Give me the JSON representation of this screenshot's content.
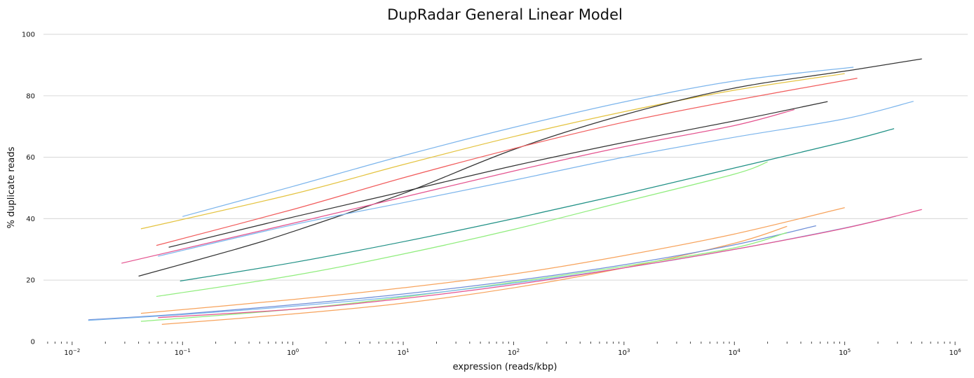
{
  "chart_data": {
    "type": "line",
    "title": "DupRadar General Linear Model",
    "xlabel": "expression (reads/kbp)",
    "ylabel": "% duplicate reads",
    "x_scale": "log10",
    "xlim": [
      0.0055,
      1300000
    ],
    "ylim": [
      0,
      100
    ],
    "x_ticks": [
      0.01,
      0.1,
      1,
      10,
      100,
      1000,
      10000,
      100000,
      1000000
    ],
    "x_tick_labels": [
      {
        "base": "10",
        "exp": "−2"
      },
      {
        "base": "10",
        "exp": "−1"
      },
      {
        "base": "10",
        "exp": "0"
      },
      {
        "base": "10",
        "exp": "1"
      },
      {
        "base": "10",
        "exp": "2"
      },
      {
        "base": "10",
        "exp": "3"
      },
      {
        "base": "10",
        "exp": "4"
      },
      {
        "base": "10",
        "exp": "5"
      },
      {
        "base": "10",
        "exp": "6"
      }
    ],
    "y_ticks": [
      0,
      20,
      40,
      60,
      80,
      100
    ],
    "y_tick_labels": [
      "0",
      "20",
      "40",
      "60",
      "80",
      "100"
    ],
    "grid": "horizontal",
    "legend": "none",
    "series": [
      {
        "color": "#7cb5ec",
        "x": [
          0.1,
          1,
          10,
          100,
          1000,
          10000,
          120000
        ],
        "y": [
          40.7,
          50.5,
          60.5,
          69.7,
          78.0,
          84.8,
          89.3
        ]
      },
      {
        "color": "#e4c340",
        "x": [
          0.042,
          1,
          10,
          100,
          1000,
          10000,
          100000
        ],
        "y": [
          36.7,
          48.0,
          57.6,
          66.7,
          74.8,
          81.8,
          87.2
        ]
      },
      {
        "color": "#333333",
        "x": [
          0.04,
          0.3,
          1,
          10,
          100,
          1000,
          10000,
          100000,
          500000
        ],
        "y": [
          21.3,
          30.0,
          35.8,
          48.2,
          62.5,
          73.8,
          82.5,
          88.0,
          92.0
        ]
      },
      {
        "color": "#f15c5c",
        "x": [
          0.058,
          1,
          10,
          100,
          1000,
          10000,
          130000
        ],
        "y": [
          31.3,
          43.0,
          53.3,
          62.8,
          71.4,
          78.5,
          85.7
        ]
      },
      {
        "color": "#333333",
        "x": [
          0.075,
          1,
          10,
          100,
          1000,
          10000,
          70000
        ],
        "y": [
          30.7,
          40.5,
          48.8,
          57.2,
          64.8,
          71.8,
          78.1
        ]
      },
      {
        "color": "#e4538f",
        "x": [
          0.028,
          1,
          10,
          100,
          1000,
          10000,
          35000
        ],
        "y": [
          25.5,
          38.5,
          47.0,
          55.5,
          63.4,
          70.3,
          75.5
        ]
      },
      {
        "color": "#7cb5ec",
        "x": [
          0.06,
          1,
          10,
          100,
          1000,
          10000,
          100000,
          420000
        ],
        "y": [
          27.8,
          38.0,
          45.2,
          52.5,
          60.0,
          66.5,
          72.5,
          78.2
        ]
      },
      {
        "color": "#219186",
        "x": [
          0.095,
          1,
          10,
          100,
          1000,
          10000,
          100000,
          280000
        ],
        "y": [
          19.7,
          25.7,
          32.5,
          40.0,
          48.0,
          56.5,
          65.0,
          69.3
        ]
      },
      {
        "color": "#90ed7d",
        "x": [
          0.058,
          1,
          10,
          100,
          1000,
          10000,
          20000
        ],
        "y": [
          14.7,
          21.5,
          28.5,
          36.5,
          45.5,
          54.5,
          58.5
        ]
      },
      {
        "color": "#f7a35c",
        "x": [
          0.042,
          1,
          10,
          100,
          1000,
          10000,
          100000
        ],
        "y": [
          9.2,
          13.7,
          17.5,
          22.0,
          28.0,
          35.0,
          43.6
        ]
      },
      {
        "color": "#f7a35c",
        "x": [
          0.065,
          1,
          10,
          100,
          1000,
          10000,
          30000
        ],
        "y": [
          5.6,
          9.0,
          12.5,
          17.5,
          24.0,
          32.0,
          37.5
        ]
      },
      {
        "color": "#6f8fd8",
        "x": [
          0.014,
          0.1,
          1,
          10,
          100,
          1000,
          10000,
          55000
        ],
        "y": [
          7.1,
          9.0,
          12.0,
          15.5,
          19.8,
          25.0,
          31.5,
          37.7
        ]
      },
      {
        "color": "#90ed7d",
        "x": [
          0.042,
          1,
          10,
          100,
          1000,
          10000,
          30000
        ],
        "y": [
          6.6,
          10.5,
          14.5,
          19.3,
          24.5,
          30.5,
          35.5
        ]
      },
      {
        "color": "#7cb5ec",
        "x": [
          0.014,
          0.1,
          1,
          10,
          100,
          1000,
          10000,
          100000,
          290000
        ],
        "y": [
          6.9,
          8.8,
          11.5,
          14.8,
          19.0,
          24.0,
          30.0,
          37.0,
          40.8
        ]
      },
      {
        "color": "#e4538f",
        "x": [
          0.06,
          1,
          10,
          100,
          1000,
          10000,
          100000,
          500000
        ],
        "y": [
          7.8,
          10.5,
          14.0,
          18.5,
          24.0,
          30.0,
          36.9,
          43.0
        ]
      }
    ]
  }
}
